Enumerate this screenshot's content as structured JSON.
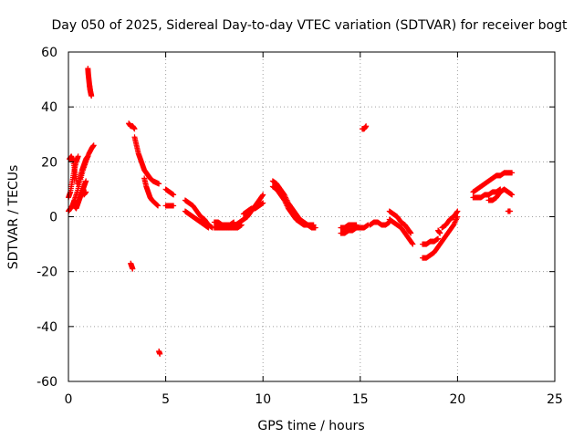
{
  "chart_data": {
    "type": "scatter",
    "title": "Day 050 of 2025, Sidereal Day-to-day VTEC variation (SDTVAR) for receiver bogt",
    "xlabel": "GPS time / hours",
    "ylabel": "SDTVAR / TECUs",
    "xlim": [
      0,
      25
    ],
    "ylim": [
      -60,
      60
    ],
    "x_ticks": [
      0,
      5,
      10,
      15,
      20,
      25
    ],
    "y_ticks": [
      -60,
      -40,
      -20,
      0,
      20,
      40,
      60
    ],
    "grid": true,
    "marker": "+",
    "color": "#ff0000",
    "segments": [
      {
        "x": [
          0.0,
          0.1,
          0.2,
          0.3,
          0.45,
          0.6,
          0.75,
          0.9,
          1.05,
          1.2,
          1.3
        ],
        "y": [
          2,
          3,
          4,
          6,
          9,
          13,
          17,
          20,
          23,
          25,
          26
        ]
      },
      {
        "x": [
          0.0,
          0.1,
          0.2,
          0.3,
          0.4,
          0.5
        ],
        "y": [
          7,
          9,
          13,
          17,
          20,
          22
        ]
      },
      {
        "x": [
          0.05,
          0.15,
          0.25,
          0.35,
          0.45
        ],
        "y": [
          21,
          22,
          20,
          16,
          12
        ]
      },
      {
        "x": [
          0.3,
          0.4,
          0.5,
          0.6,
          0.7,
          0.8,
          0.9
        ],
        "y": [
          4,
          3,
          5,
          7,
          9,
          11,
          13
        ]
      },
      {
        "x": [
          0.6,
          0.7,
          0.8,
          0.9,
          1.0
        ],
        "y": [
          14,
          17,
          19,
          21,
          22
        ]
      },
      {
        "x": [
          0.8,
          0.9
        ],
        "y": [
          8,
          9
        ]
      },
      {
        "x": [
          1.0,
          1.02,
          1.05,
          1.08,
          1.1,
          1.12,
          1.15,
          1.18
        ],
        "y": [
          54,
          52,
          50,
          48,
          47,
          46,
          45,
          44
        ]
      },
      {
        "x": [
          3.1,
          3.2,
          3.3,
          3.4
        ],
        "y": [
          34,
          33,
          33,
          32
        ]
      },
      {
        "x": [
          3.2,
          3.25,
          3.3
        ],
        "y": [
          -17,
          -18,
          -19
        ]
      },
      {
        "x": [
          3.4,
          3.5,
          3.6,
          3.7,
          3.8,
          3.9,
          4.0,
          4.1,
          4.2,
          4.35,
          4.5,
          4.65
        ],
        "y": [
          29,
          26,
          23,
          21,
          19,
          17,
          16,
          15,
          14,
          13,
          12.5,
          12
        ]
      },
      {
        "x": [
          3.9,
          4.0,
          4.1,
          4.2,
          4.3,
          4.45,
          4.6
        ],
        "y": [
          14,
          11,
          9,
          7,
          6,
          5,
          4
        ]
      },
      {
        "x": [
          4.65,
          4.7
        ],
        "y": [
          -49,
          -50
        ]
      },
      {
        "x": [
          5.0,
          5.2,
          5.4
        ],
        "y": [
          10,
          9,
          8
        ]
      },
      {
        "x": [
          5.0,
          5.2,
          5.4
        ],
        "y": [
          4,
          4,
          4
        ]
      },
      {
        "x": [
          6.0,
          6.2,
          6.4,
          6.6,
          6.8,
          7.0,
          7.2,
          7.4
        ],
        "y": [
          6,
          5,
          4,
          2,
          0,
          -1,
          -3,
          -4
        ]
      },
      {
        "x": [
          6.0,
          6.2,
          6.4,
          6.6,
          6.8,
          7.0,
          7.2
        ],
        "y": [
          2,
          1,
          0,
          -1,
          -2,
          -3,
          -4
        ]
      },
      {
        "x": [
          7.5,
          7.7,
          7.9,
          8.1,
          8.3,
          8.5,
          8.7,
          8.9
        ],
        "y": [
          -4,
          -4,
          -4,
          -4,
          -4,
          -4,
          -4,
          -3
        ]
      },
      {
        "x": [
          7.5,
          7.7,
          7.9,
          8.1,
          8.3,
          8.5
        ],
        "y": [
          -2,
          -2,
          -3,
          -3,
          -3,
          -2
        ]
      },
      {
        "x": [
          8.6,
          8.8,
          9.0,
          9.2,
          9.4,
          9.6,
          9.8,
          10.0
        ],
        "y": [
          -3,
          -2,
          -1,
          0,
          2,
          4,
          6,
          8
        ]
      },
      {
        "x": [
          9.0,
          9.2,
          9.4,
          9.6,
          9.8,
          10.0
        ],
        "y": [
          1,
          2,
          3,
          3,
          4,
          5
        ]
      },
      {
        "x": [
          10.5,
          10.7,
          10.9,
          11.1,
          11.3,
          11.5,
          11.7,
          11.9,
          12.1,
          12.3,
          12.5,
          12.7
        ],
        "y": [
          13,
          12,
          10,
          8,
          5,
          3,
          1,
          -1,
          -2,
          -3,
          -4,
          -4
        ]
      },
      {
        "x": [
          10.5,
          10.7,
          10.9,
          11.1,
          11.3,
          11.5,
          11.7,
          11.9,
          12.1,
          12.3,
          12.6
        ],
        "y": [
          11,
          10,
          8,
          6,
          3,
          1,
          -1,
          -2,
          -3,
          -3,
          -3
        ]
      },
      {
        "x": [
          14.0,
          14.2,
          14.4,
          14.6,
          14.8,
          15.0,
          15.2,
          15.4
        ],
        "y": [
          -6,
          -6,
          -5,
          -5,
          -4,
          -4,
          -4,
          -3
        ]
      },
      {
        "x": [
          14.0,
          14.2,
          14.4,
          14.6,
          14.8
        ],
        "y": [
          -4,
          -4,
          -3,
          -3,
          -3
        ]
      },
      {
        "x": [
          15.1,
          15.2,
          15.3
        ],
        "y": [
          32,
          32,
          33
        ]
      },
      {
        "x": [
          15.5,
          15.7,
          15.9,
          16.1,
          16.3,
          16.5
        ],
        "y": [
          -3,
          -2,
          -2,
          -3,
          -3,
          -2
        ]
      },
      {
        "x": [
          16.5,
          16.7,
          16.9,
          17.1,
          17.3,
          17.5,
          17.7
        ],
        "y": [
          -1,
          -2,
          -3,
          -4,
          -6,
          -8,
          -10
        ]
      },
      {
        "x": [
          16.5,
          16.7,
          16.9,
          17.1,
          17.3,
          17.5,
          17.6
        ],
        "y": [
          2,
          1,
          0,
          -2,
          -3,
          -5,
          -6
        ]
      },
      {
        "x": [
          18.2,
          18.4,
          18.6,
          18.8,
          19.0,
          19.2,
          19.4,
          19.6,
          19.8,
          20.0
        ],
        "y": [
          -15,
          -15,
          -14,
          -13,
          -11,
          -9,
          -7,
          -5,
          -3,
          0
        ]
      },
      {
        "x": [
          18.2,
          18.4,
          18.6,
          18.8,
          19.0
        ],
        "y": [
          -10,
          -10,
          -9,
          -9,
          -8
        ]
      },
      {
        "x": [
          19.2,
          19.4,
          19.6,
          19.8,
          20.0
        ],
        "y": [
          -4,
          -3,
          -1,
          0,
          2
        ]
      },
      {
        "x": [
          19.0,
          19.1
        ],
        "y": [
          -5,
          -6
        ]
      },
      {
        "x": [
          20.8,
          21.0,
          21.2,
          21.4,
          21.6,
          21.8,
          22.0,
          22.2
        ],
        "y": [
          7,
          7,
          7,
          8,
          8,
          9,
          9,
          10
        ]
      },
      {
        "x": [
          20.8,
          21.0,
          21.2,
          21.4,
          21.6,
          21.8,
          22.0,
          22.2,
          22.4,
          22.6,
          22.8
        ],
        "y": [
          9,
          10,
          11,
          12,
          13,
          14,
          15,
          15,
          16,
          16,
          16
        ]
      },
      {
        "x": [
          21.6,
          21.8,
          22.0,
          22.2,
          22.4,
          22.6,
          22.8
        ],
        "y": [
          6,
          6,
          7,
          9,
          10,
          9,
          8
        ]
      },
      {
        "x": [
          22.6,
          22.7
        ],
        "y": [
          2,
          2
        ]
      }
    ]
  }
}
